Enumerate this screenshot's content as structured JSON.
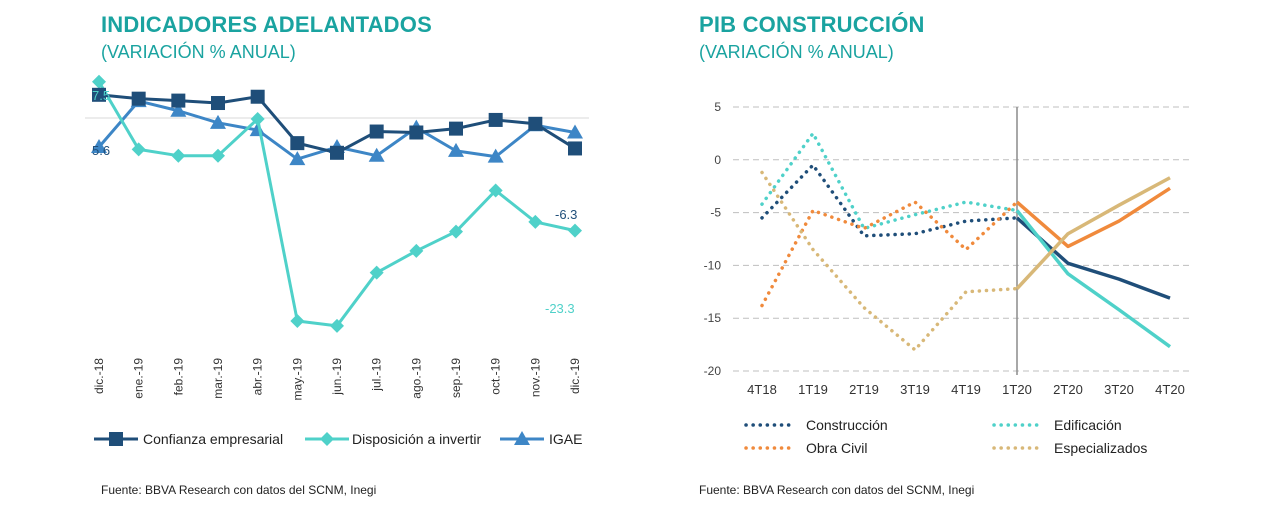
{
  "left": {
    "title": "INDICADORES ADELANTADOS",
    "subtitle": "(VARIACIÓN  % ANUAL)",
    "source": "Fuente: BBVA Research con datos del SCNM, Inegi"
  },
  "right": {
    "title": "PIB CONSTRUCCIÓN",
    "subtitle": "(VARIACIÓN  % ANUAL)",
    "source": "Fuente: BBVA Research con datos del SCNM, Inegi"
  },
  "colors": {
    "title": "#1aa3a0",
    "navy": "#1f4e79",
    "turquoise": "#4fd1c9",
    "blue": "#3d86c6",
    "orange": "#f08a3c",
    "tan": "#d8b878"
  },
  "chart_data": [
    {
      "type": "line",
      "categories": [
        "dic.-18",
        "ene.-19",
        "feb.-19",
        "mar.-19",
        "abr.-19",
        "may.-19",
        "jun.-19",
        "jul.-19",
        "ago.-19",
        "sep.-19",
        "oct.-19",
        "nov.-19",
        "dic.-19"
      ],
      "series": [
        {
          "name": "Confianza empresarial",
          "marker": "square",
          "color": "#1f4e79",
          "values": [
            4.8,
            4.0,
            3.6,
            3.1,
            4.4,
            -5.2,
            -7.2,
            -2.8,
            -3.0,
            -2.2,
            -0.4,
            -1.2,
            -6.3
          ]
        },
        {
          "name": "Disposición a invertir",
          "marker": "diamond",
          "color": "#4fd1c9",
          "values": [
            7.5,
            -6.5,
            -7.8,
            -7.8,
            -0.2,
            -42.0,
            -43.0,
            -32.0,
            -27.5,
            -23.5,
            -15.0,
            -21.5,
            -23.3
          ]
        },
        {
          "name": "IGAE",
          "marker": "triangle",
          "color": "#3d86c6",
          "values": [
            -6.0,
            3.5,
            1.5,
            -1.0,
            -2.5,
            -8.5,
            -6.0,
            -7.8,
            -2.0,
            -6.8,
            -8.0,
            -1.5,
            -3.0
          ]
        }
      ],
      "data_labels": [
        "7.5",
        "5.6",
        "-6.3",
        "-23.3"
      ],
      "ylim": [
        -48,
        12
      ],
      "legend": "bottom"
    },
    {
      "type": "line",
      "categories": [
        "4T18",
        "1T19",
        "2T19",
        "3T19",
        "4T19",
        "1T20",
        "2T20",
        "3T20",
        "4T20"
      ],
      "yticks": [
        "5",
        "0",
        "-5",
        "-10",
        "-15",
        "-20"
      ],
      "ylim": [
        -20,
        5
      ],
      "grid": true,
      "legend": "bottom",
      "series": [
        {
          "name": "Construcción",
          "color": "#1f4e79",
          "dashed_until_index": 5,
          "values": [
            -5.5,
            -0.5,
            -7.2,
            -7.0,
            -5.8,
            -5.5,
            -9.8,
            -11.3,
            -13.1
          ]
        },
        {
          "name": "Edificación",
          "color": "#4fd1c9",
          "dashed_until_index": 5,
          "values": [
            -4.2,
            2.5,
            -6.5,
            -5.2,
            -4.0,
            -4.8,
            -10.8,
            -14.2,
            -17.7
          ]
        },
        {
          "name": "Obra Civil",
          "color": "#f08a3c",
          "dashed_until_index": 5,
          "values": [
            -13.8,
            -4.8,
            -6.5,
            -4.0,
            -8.5,
            -4.0,
            -8.2,
            -5.8,
            -2.7
          ]
        },
        {
          "name": "Especializados",
          "color": "#d8b878",
          "dashed_until_index": 5,
          "values": [
            -1.2,
            -8.5,
            -14.0,
            -18.0,
            -12.5,
            -12.2,
            -7.0,
            -4.3,
            -1.7
          ]
        }
      ]
    }
  ]
}
